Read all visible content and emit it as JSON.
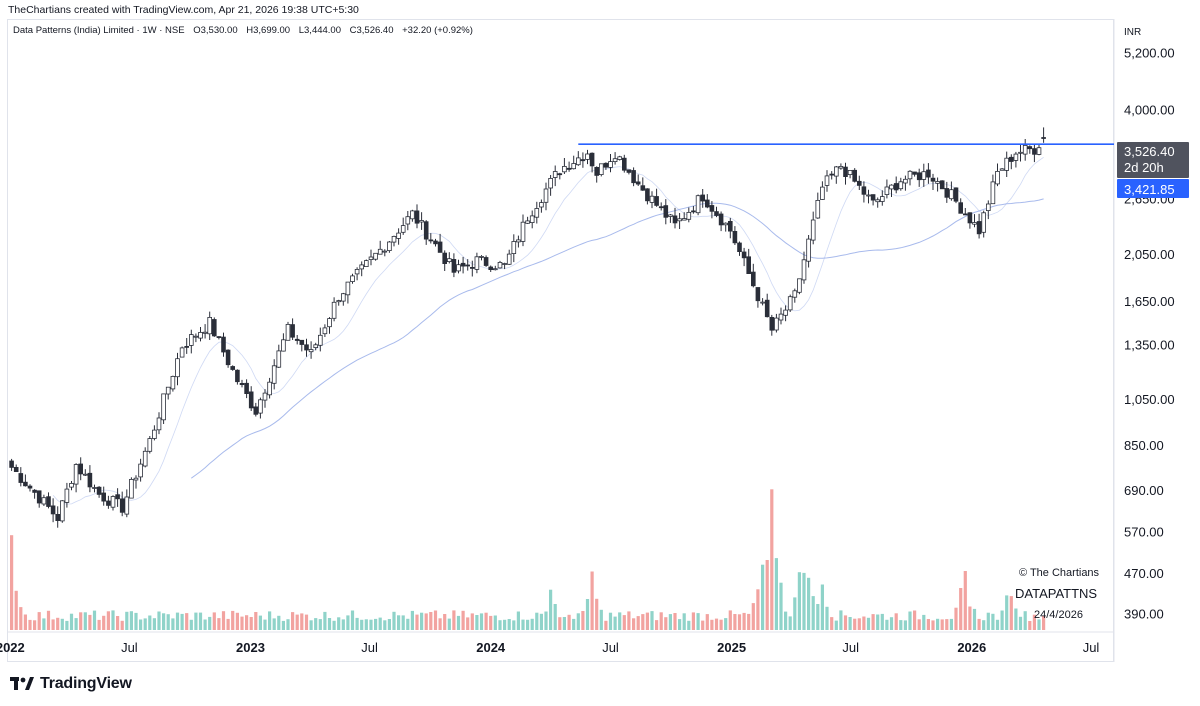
{
  "header": {
    "attribution": "TheChartians created with TradingView.com, Apr 21, 2026 19:38 UTC+5:30",
    "symbol": "Data Patterns (India) Limited · 1W · NSE",
    "open": "O3,530.00",
    "high": "H3,699.00",
    "low": "L3,444.00",
    "close": "C3,526.40",
    "change": "+32.20 (+0.92%)"
  },
  "axis": {
    "currency": "INR",
    "price_ticks": [
      "5,200.00",
      "4,000.00",
      "2,650.00",
      "2,050.00",
      "1,650.00",
      "1,350.00",
      "1,050.00",
      "850.00",
      "690.00",
      "570.00",
      "470.00",
      "390.00"
    ],
    "time_ticks": [
      "2022",
      "Jul",
      "2023",
      "Jul",
      "2024",
      "Jul",
      "2025",
      "Jul",
      "2026",
      "Jul"
    ]
  },
  "labels": {
    "last_price": "3,526.40",
    "countdown": "2d 20h",
    "level": "3,421.85"
  },
  "watermark": {
    "copyright": "© The Chartians",
    "ticker": "DATAPATTNS",
    "date": "24/4/2026"
  },
  "footer": {
    "brand": "TradingView"
  },
  "colors": {
    "up": "#ffffff",
    "down": "#2a2e39",
    "wick": "#2a2e39",
    "resistance": "#2962ff",
    "ma": "#9fb3ea",
    "vol_up": "#8fd3c9",
    "vol_down": "#f2a3a0",
    "label_grey": "#4a4e59",
    "label_blue": "#2962ff"
  },
  "chart_data": {
    "type": "candlestick",
    "interval": "1W",
    "exchange": "NSE",
    "y_scale": "log",
    "ylim": [
      360,
      6100
    ],
    "x_range": [
      "2021-12-27",
      "2026-08-05"
    ],
    "resistance_level": 3421.85,
    "resistance_from": "2024-05-13",
    "last_close": 3526.4,
    "price_anchors": [
      {
        "date": "2022-01-03",
        "close": 770
      },
      {
        "date": "2022-02-14",
        "close": 670
      },
      {
        "date": "2022-03-14",
        "close": 610
      },
      {
        "date": "2022-04-11",
        "close": 780
      },
      {
        "date": "2022-05-16",
        "close": 680
      },
      {
        "date": "2022-06-20",
        "close": 640
      },
      {
        "date": "2022-08-01",
        "close": 870
      },
      {
        "date": "2022-09-19",
        "close": 1350
      },
      {
        "date": "2022-10-31",
        "close": 1500
      },
      {
        "date": "2022-12-12",
        "close": 1150
      },
      {
        "date": "2023-01-09",
        "close": 1000
      },
      {
        "date": "2023-02-27",
        "close": 1450
      },
      {
        "date": "2023-04-03",
        "close": 1300
      },
      {
        "date": "2023-05-15",
        "close": 1700
      },
      {
        "date": "2023-07-17",
        "close": 2100
      },
      {
        "date": "2023-09-04",
        "close": 2480
      },
      {
        "date": "2023-10-09",
        "close": 2150
      },
      {
        "date": "2023-11-06",
        "close": 1900
      },
      {
        "date": "2023-12-11",
        "close": 2000
      },
      {
        "date": "2024-01-22",
        "close": 1950
      },
      {
        "date": "2024-02-26",
        "close": 2450
      },
      {
        "date": "2024-04-15",
        "close": 3050
      },
      {
        "date": "2024-05-27",
        "close": 3300
      },
      {
        "date": "2024-06-10",
        "close": 3000
      },
      {
        "date": "2024-07-08",
        "close": 3300
      },
      {
        "date": "2024-08-12",
        "close": 2850
      },
      {
        "date": "2024-10-07",
        "close": 2350
      },
      {
        "date": "2024-11-18",
        "close": 2700
      },
      {
        "date": "2024-12-30",
        "close": 2300
      },
      {
        "date": "2025-02-10",
        "close": 1700
      },
      {
        "date": "2025-03-03",
        "close": 1450
      },
      {
        "date": "2025-04-07",
        "close": 1700
      },
      {
        "date": "2025-05-19",
        "close": 2800
      },
      {
        "date": "2025-06-16",
        "close": 3100
      },
      {
        "date": "2025-08-04",
        "close": 2600
      },
      {
        "date": "2025-09-15",
        "close": 2900
      },
      {
        "date": "2025-10-27",
        "close": 3000
      },
      {
        "date": "2025-12-01",
        "close": 2700
      },
      {
        "date": "2026-01-12",
        "close": 2300
      },
      {
        "date": "2026-02-09",
        "close": 3000
      },
      {
        "date": "2026-03-09",
        "close": 3300
      },
      {
        "date": "2026-04-06",
        "close": 3350
      },
      {
        "date": "2026-04-20",
        "close": 3526.4
      }
    ],
    "volume_peaks": [
      {
        "date": "2022-01-03",
        "rel": 1.0
      },
      {
        "date": "2024-04-01",
        "rel": 0.45
      },
      {
        "date": "2024-06-03",
        "rel": 0.6
      },
      {
        "date": "2025-02-17",
        "rel": 0.75
      },
      {
        "date": "2025-03-03",
        "rel": 1.55
      },
      {
        "date": "2025-04-21",
        "rel": 0.95
      },
      {
        "date": "2025-05-19",
        "rel": 0.62
      },
      {
        "date": "2025-12-22",
        "rel": 0.62
      },
      {
        "date": "2026-03-02",
        "rel": 0.55
      }
    ]
  }
}
